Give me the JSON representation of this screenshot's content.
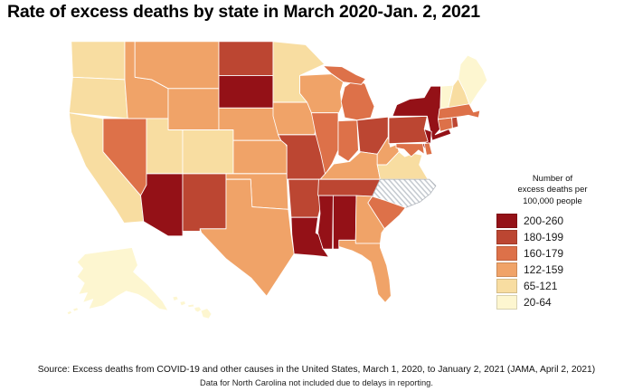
{
  "title": "Rate of excess deaths by state in March 2020-Jan. 2, 2021",
  "legend": {
    "title_lines": [
      "Number of",
      "excess deaths per",
      "100,000 people"
    ],
    "bins": [
      {
        "label": "200-260",
        "color": "#941117"
      },
      {
        "label": "180-199",
        "color": "#bc4632"
      },
      {
        "label": "160-179",
        "color": "#dd7149"
      },
      {
        "label": "122-159",
        "color": "#f0a368"
      },
      {
        "label": "65-121",
        "color": "#f8dda1"
      },
      {
        "label": "20-64",
        "color": "#fdf6d0"
      }
    ],
    "no_data_label": "No data (hatched)"
  },
  "footer": {
    "source": "Source: Excess deaths from COVID-19 and other causes in the United States, March 1, 2020, to January 2, 2021 (JAMA, April 2, 2021)",
    "note": "Data for North Carolina not included due to delays in reporting."
  },
  "chart_data": {
    "type": "heatmap",
    "subtype": "us-state-choropleth",
    "title": "Rate of excess deaths by state in March 2020-Jan. 2, 2021",
    "unit": "excess deaths per 100,000 people",
    "period": "March 1, 2020 to January 2, 2021",
    "bins": [
      "20-64",
      "65-121",
      "122-159",
      "160-179",
      "180-199",
      "200-260"
    ],
    "no_data_states": [
      "NC"
    ],
    "states": {
      "WA": "65-121",
      "OR": "65-121",
      "CA": "65-121",
      "NV": "160-179",
      "ID": "122-159",
      "MT": "122-159",
      "WY": "122-159",
      "UT": "65-121",
      "CO": "65-121",
      "AZ": "200-260",
      "NM": "180-199",
      "ND": "180-199",
      "SD": "200-260",
      "NE": "122-159",
      "KS": "122-159",
      "OK": "122-159",
      "TX": "122-159",
      "MN": "65-121",
      "IA": "122-159",
      "MO": "180-199",
      "AR": "180-199",
      "LA": "200-260",
      "WI": "122-159",
      "IL": "160-179",
      "IN": "160-179",
      "MI": "160-179",
      "OH": "180-199",
      "KY": "122-159",
      "TN": "180-199",
      "MS": "200-260",
      "AL": "200-260",
      "GA": "122-159",
      "FL": "122-159",
      "SC": "160-179",
      "NC": "no-data",
      "VA": "65-121",
      "WV": "122-159",
      "PA": "180-199",
      "NY": "200-260",
      "NJ": "200-260",
      "MD": "160-179",
      "DE": "160-179",
      "CT": "160-179",
      "RI": "180-199",
      "MA": "160-179",
      "VT": "20-64",
      "NH": "65-121",
      "ME": "20-64",
      "AK": "20-64",
      "HI": "20-64"
    }
  }
}
